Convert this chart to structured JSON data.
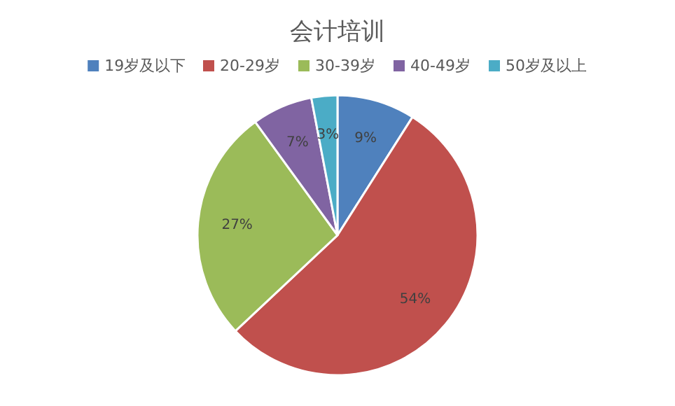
{
  "chart_data": {
    "type": "pie",
    "title": "会计培训",
    "categories": [
      "19岁及以下",
      "20-29岁",
      "30-39岁",
      "40-49岁",
      "50岁及以上"
    ],
    "values": [
      9,
      54,
      27,
      7,
      3
    ],
    "colors": [
      "#4f81bd",
      "#c0504d",
      "#9bbb59",
      "#8064a2",
      "#4bacc6"
    ],
    "value_labels": [
      "9%",
      "54%",
      "27%",
      "7%",
      "3%"
    ],
    "legend": "top"
  }
}
